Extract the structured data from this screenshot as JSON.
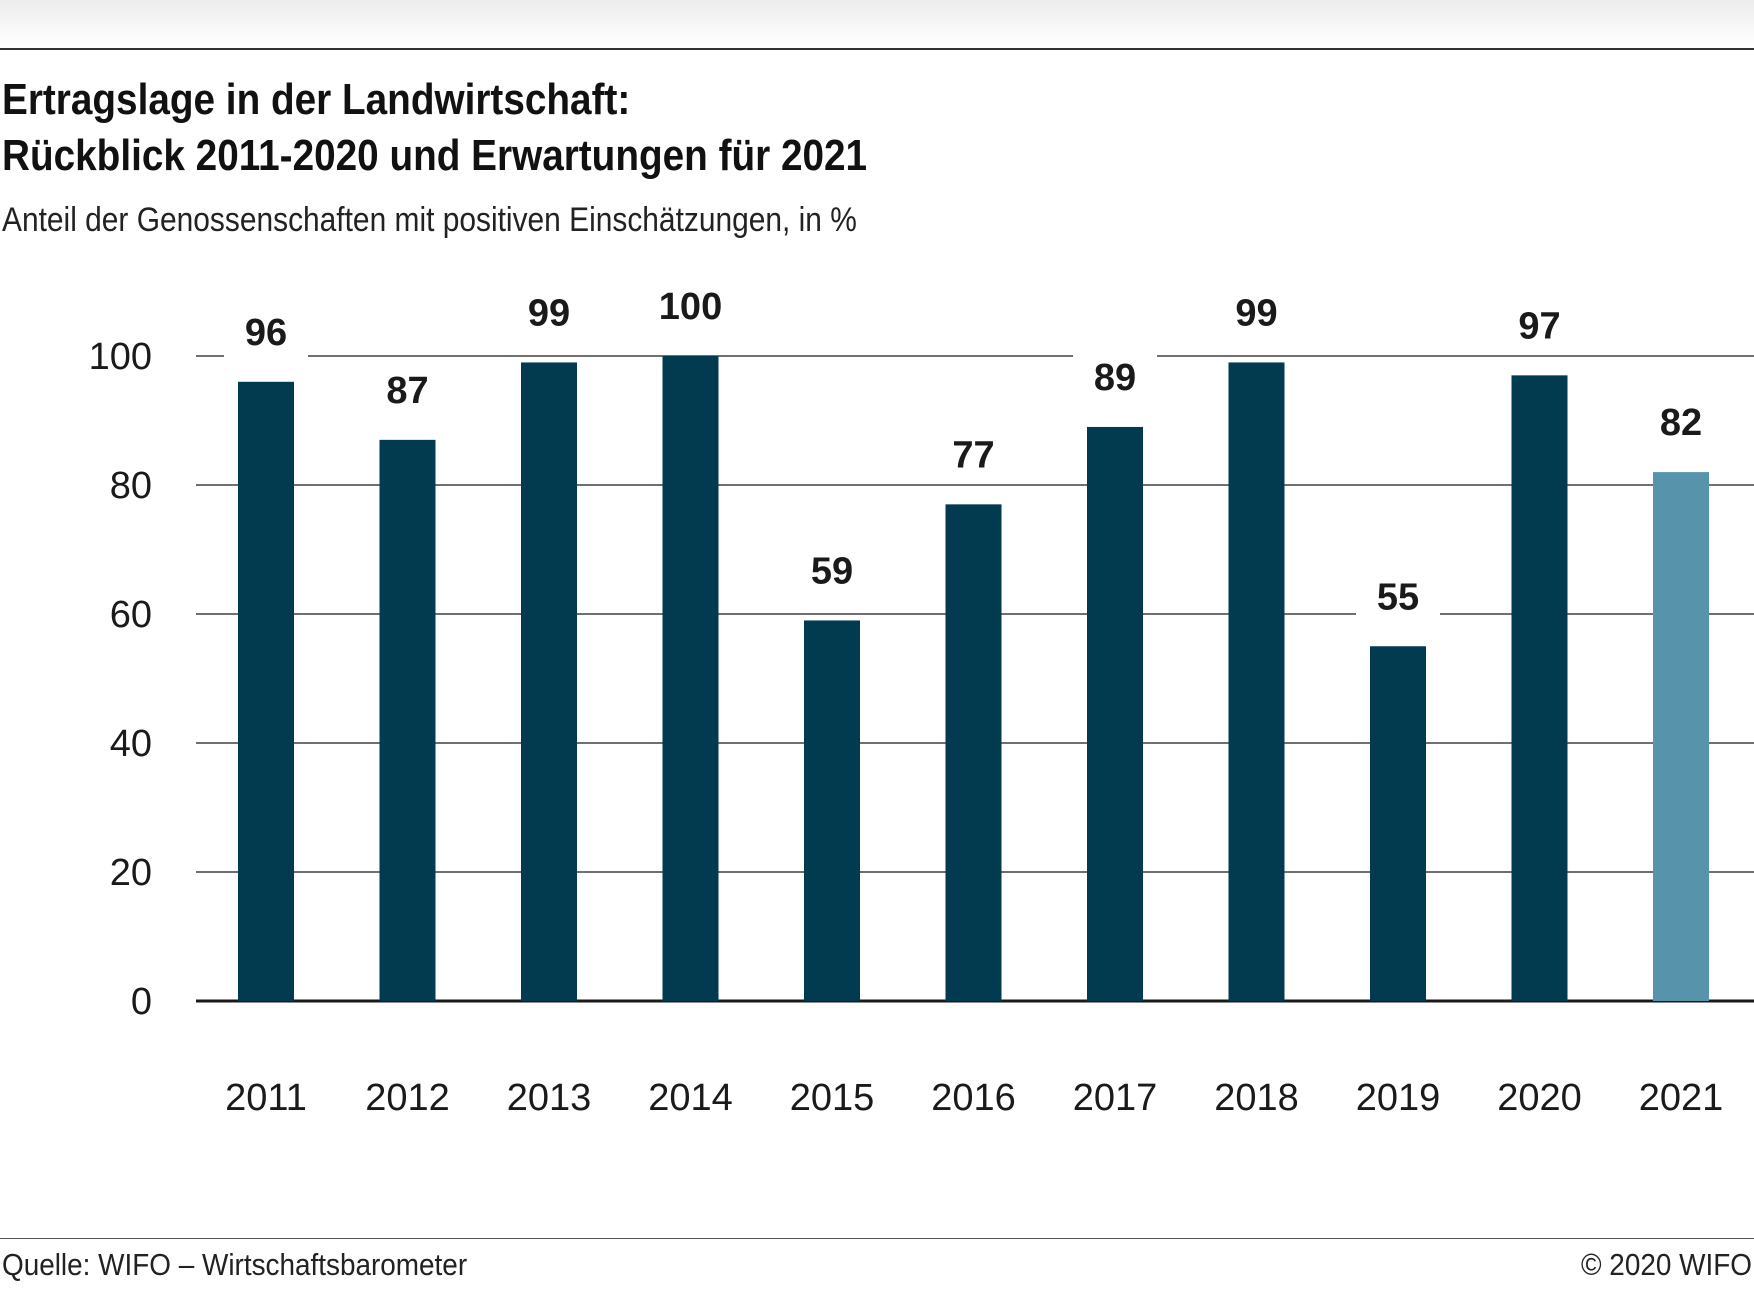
{
  "header": {
    "title_line1": "Ertragslage in der Landwirtschaft:",
    "title_line2": "Rückblick 2011-2020 und Erwartungen für 2021",
    "subtitle": "Anteil der Genossenschaften mit positiven Einschätzungen, in %"
  },
  "footer": {
    "source": "Quelle: WIFO – Wirtschaftsbarometer",
    "copyright": "© 2020 WIFO"
  },
  "colors": {
    "bar": "#023a4f",
    "bar_expectation": "#5793ab",
    "grid": "#1a1a1a",
    "text": "#1a1a1a"
  },
  "chart_data": {
    "type": "bar",
    "title": "Ertragslage in der Landwirtschaft: Rückblick 2011-2020 und Erwartungen für 2021",
    "subtitle": "Anteil der Genossenschaften mit positiven Einschätzungen, in %",
    "xlabel": "",
    "ylabel": "",
    "categories": [
      "2011",
      "2012",
      "2013",
      "2014",
      "2015",
      "2016",
      "2017",
      "2018",
      "2019",
      "2020",
      "2021"
    ],
    "values": [
      96,
      87,
      99,
      100,
      59,
      77,
      89,
      99,
      55,
      97,
      82
    ],
    "labels": [
      "96",
      "87",
      "99",
      "100",
      "59",
      "77",
      "89",
      "99",
      "55",
      "97",
      "82"
    ],
    "highlight": [
      "normal",
      "normal",
      "normal",
      "normal",
      "normal",
      "normal",
      "normal",
      "normal",
      "normal",
      "normal",
      "expectation"
    ],
    "ylim": [
      0,
      100
    ],
    "yticks": [
      0,
      20,
      40,
      60,
      80,
      100
    ],
    "ytick_labels": [
      "0",
      "20",
      "40",
      "60",
      "80",
      "100"
    ],
    "grid": true,
    "legend": "none"
  }
}
